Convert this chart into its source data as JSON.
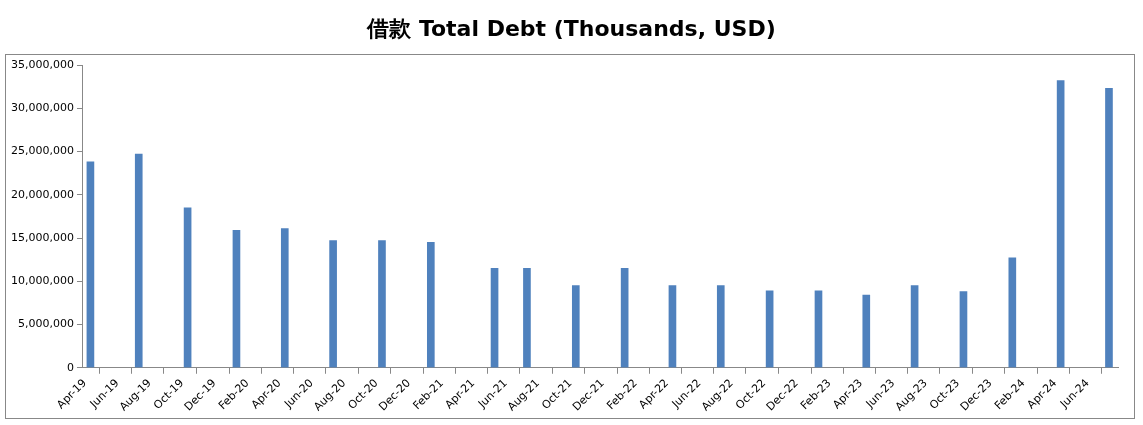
{
  "chart_data": {
    "type": "bar",
    "title": "借款 Total Debt (Thousands, USD)",
    "x": [
      "2019-04-15",
      "2019-07-15",
      "2019-10-15",
      "2020-01-15",
      "2020-04-15",
      "2020-07-15",
      "2020-10-15",
      "2021-01-15",
      "2021-05-15",
      "2021-07-15",
      "2021-10-15",
      "2022-01-15",
      "2022-04-15",
      "2022-07-15",
      "2022-10-15",
      "2023-01-15",
      "2023-04-15",
      "2023-07-15",
      "2023-10-15",
      "2024-01-15",
      "2024-04-15",
      "2024-07-15"
    ],
    "values": [
      23800000,
      24700000,
      18500000,
      15900000,
      16100000,
      14700000,
      14700000,
      14500000,
      11500000,
      11500000,
      9500000,
      11500000,
      9500000,
      9500000,
      8900000,
      8900000,
      8400000,
      9500000,
      8800000,
      12700000,
      33200000,
      32300000
    ],
    "color": "#4f81bd",
    "xlim": [
      "2019-04",
      "2024-08"
    ],
    "xticks": [
      {
        "value": "2019-04",
        "label": "Apr-19"
      },
      {
        "value": "2019-06",
        "label": "Jun-19"
      },
      {
        "value": "2019-08",
        "label": "Aug-19"
      },
      {
        "value": "2019-10",
        "label": "Oct-19"
      },
      {
        "value": "2019-12",
        "label": "Dec-19"
      },
      {
        "value": "2020-02",
        "label": "Feb-20"
      },
      {
        "value": "2020-04",
        "label": "Apr-20"
      },
      {
        "value": "2020-06",
        "label": "Jun-20"
      },
      {
        "value": "2020-08",
        "label": "Aug-20"
      },
      {
        "value": "2020-10",
        "label": "Oct-20"
      },
      {
        "value": "2020-12",
        "label": "Dec-20"
      },
      {
        "value": "2021-02",
        "label": "Feb-21"
      },
      {
        "value": "2021-04",
        "label": "Apr-21"
      },
      {
        "value": "2021-06",
        "label": "Jun-21"
      },
      {
        "value": "2021-08",
        "label": "Aug-21"
      },
      {
        "value": "2021-10",
        "label": "Oct-21"
      },
      {
        "value": "2021-12",
        "label": "Dec-21"
      },
      {
        "value": "2022-02",
        "label": "Feb-22"
      },
      {
        "value": "2022-04",
        "label": "Apr-22"
      },
      {
        "value": "2022-06",
        "label": "Jun-22"
      },
      {
        "value": "2022-08",
        "label": "Aug-22"
      },
      {
        "value": "2022-10",
        "label": "Oct-22"
      },
      {
        "value": "2022-12",
        "label": "Dec-22"
      },
      {
        "value": "2023-02",
        "label": "Feb-23"
      },
      {
        "value": "2023-04",
        "label": "Apr-23"
      },
      {
        "value": "2023-06",
        "label": "Jun-23"
      },
      {
        "value": "2023-08",
        "label": "Aug-23"
      },
      {
        "value": "2023-10",
        "label": "Oct-23"
      },
      {
        "value": "2023-12",
        "label": "Dec-23"
      },
      {
        "value": "2024-02",
        "label": "Feb-24"
      },
      {
        "value": "2024-04",
        "label": "Apr-24"
      },
      {
        "value": "2024-06",
        "label": "Jun-24"
      }
    ],
    "ylim": [
      0,
      35000000
    ],
    "yticks": [
      {
        "value": 0,
        "label": "0"
      },
      {
        "value": 5000000,
        "label": "5,000,000"
      },
      {
        "value": 10000000,
        "label": "10,000,000"
      },
      {
        "value": 15000000,
        "label": "15,000,000"
      },
      {
        "value": 20000000,
        "label": "20,000,000"
      },
      {
        "value": 25000000,
        "label": "25,000,000"
      },
      {
        "value": 30000000,
        "label": "30,000,000"
      },
      {
        "value": 35000000,
        "label": "35,000,000"
      }
    ],
    "grid": false,
    "legend": false
  }
}
